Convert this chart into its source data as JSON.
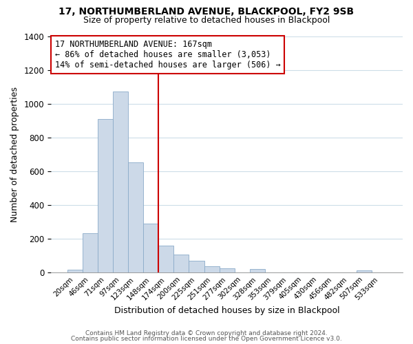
{
  "title": "17, NORTHUMBERLAND AVENUE, BLACKPOOL, FY2 9SB",
  "subtitle": "Size of property relative to detached houses in Blackpool",
  "xlabel": "Distribution of detached houses by size in Blackpool",
  "ylabel": "Number of detached properties",
  "bar_color": "#ccd9e8",
  "bar_edge_color": "#8aaac8",
  "bin_labels": [
    "20sqm",
    "46sqm",
    "71sqm",
    "97sqm",
    "123sqm",
    "148sqm",
    "174sqm",
    "200sqm",
    "225sqm",
    "251sqm",
    "277sqm",
    "302sqm",
    "328sqm",
    "353sqm",
    "379sqm",
    "405sqm",
    "430sqm",
    "456sqm",
    "482sqm",
    "507sqm",
    "533sqm"
  ],
  "bar_heights": [
    15,
    230,
    910,
    1070,
    650,
    290,
    160,
    105,
    70,
    38,
    22,
    0,
    18,
    0,
    0,
    0,
    0,
    0,
    0,
    12,
    0
  ],
  "ylim": [
    0,
    1400
  ],
  "yticks": [
    0,
    200,
    400,
    600,
    800,
    1000,
    1200,
    1400
  ],
  "vline_x_index": 6,
  "vline_color": "#cc0000",
  "annotation_title": "17 NORTHUMBERLAND AVENUE: 167sqm",
  "annotation_line1": "← 86% of detached houses are smaller (3,053)",
  "annotation_line2": "14% of semi-detached houses are larger (506) →",
  "annotation_box_color": "#ffffff",
  "annotation_box_edge": "#cc0000",
  "footer1": "Contains HM Land Registry data © Crown copyright and database right 2024.",
  "footer2": "Contains public sector information licensed under the Open Government Licence v3.0.",
  "background_color": "#ffffff",
  "grid_color": "#ccdde8"
}
